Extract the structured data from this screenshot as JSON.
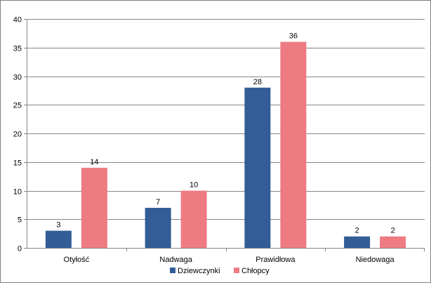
{
  "chart_data": {
    "type": "bar",
    "categories": [
      "Otyłość",
      "Nadwaga",
      "Prawidłowa",
      "Niedowaga"
    ],
    "series": [
      {
        "name": "Dziewczynki",
        "color": "#325D96",
        "values": [
          3,
          7,
          28,
          2
        ]
      },
      {
        "name": "Chłopcy",
        "color": "#EE7B82",
        "values": [
          14,
          10,
          36,
          2
        ]
      }
    ],
    "ylim": [
      0,
      40
    ],
    "yticks": [
      "0",
      "5",
      "10",
      "15",
      "20",
      "25",
      "30",
      "35",
      "40"
    ],
    "grid": true,
    "data_labels": true,
    "legend_position": "bottom",
    "title": "",
    "xlabel": "",
    "ylabel": ""
  }
}
